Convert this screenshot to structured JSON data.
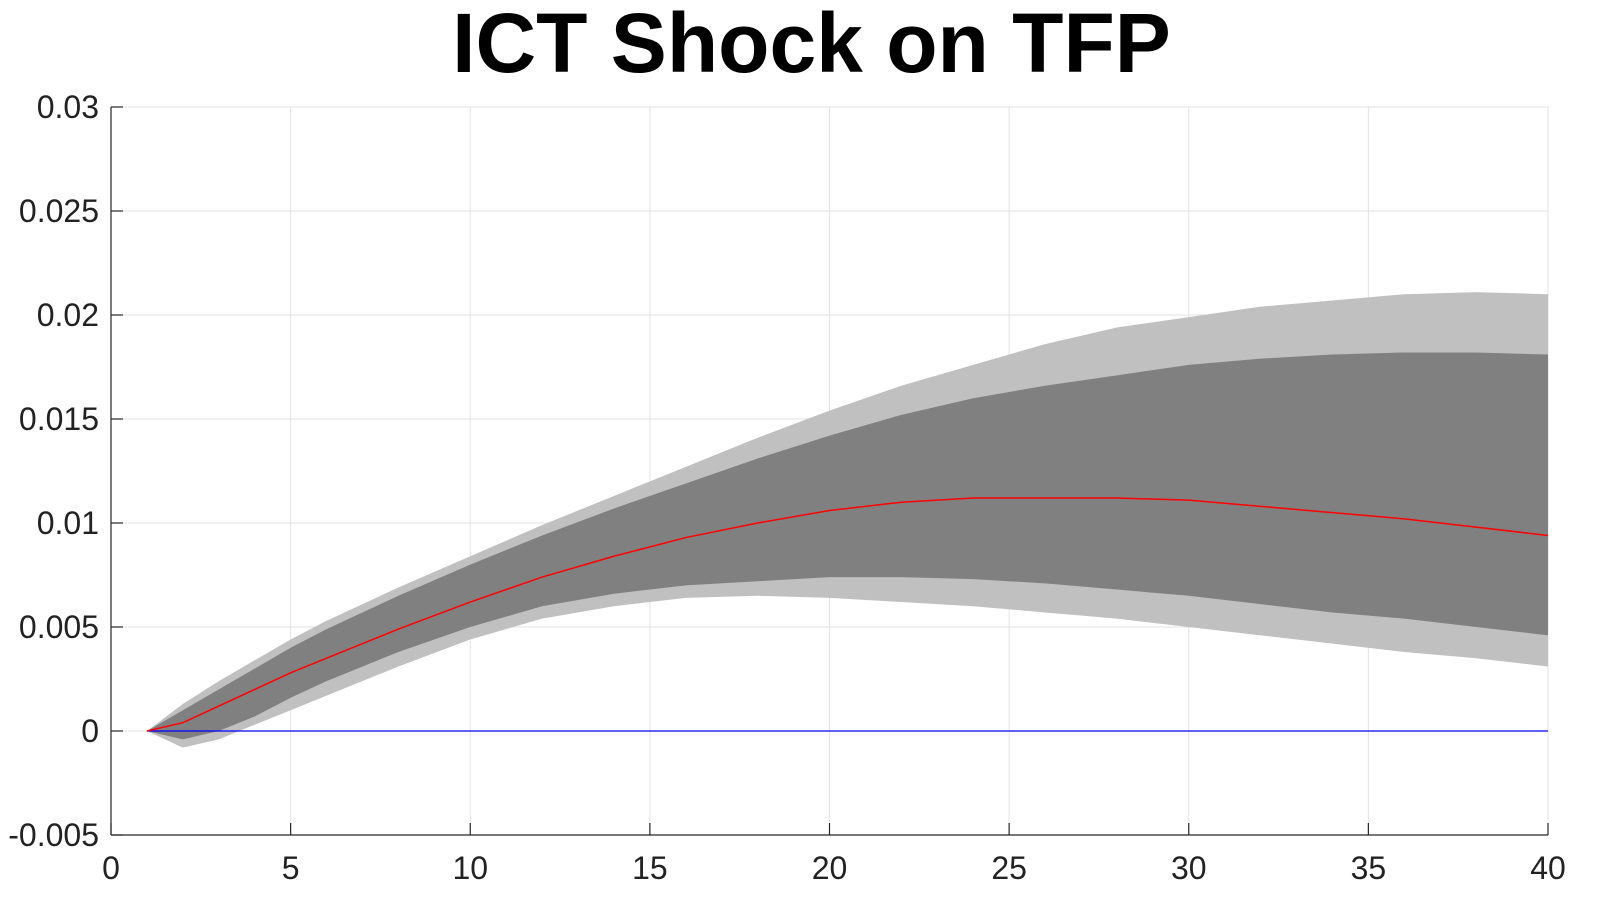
{
  "chart_data": {
    "type": "area",
    "title": "ICT Shock on TFP",
    "xlabel": "",
    "ylabel": "",
    "xlim": [
      0,
      40
    ],
    "ylim": [
      -0.005,
      0.03
    ],
    "grid": true,
    "x_ticks": [
      0,
      5,
      10,
      15,
      20,
      25,
      30,
      35,
      40
    ],
    "x_tick_labels": [
      "0",
      "5",
      "10",
      "15",
      "20",
      "25",
      "30",
      "35",
      "40"
    ],
    "y_ticks": [
      -0.005,
      0,
      0.005,
      0.01,
      0.015,
      0.02,
      0.025,
      0.03
    ],
    "y_tick_labels": [
      "-0.005",
      "0",
      "0.005",
      "0.01",
      "0.015",
      "0.02",
      "0.025",
      "0.03"
    ],
    "x": [
      1,
      2,
      3,
      4,
      5,
      6,
      8,
      10,
      12,
      14,
      16,
      18,
      20,
      22,
      24,
      26,
      28,
      30,
      32,
      34,
      36,
      38,
      40
    ],
    "series": [
      {
        "role": "outer_band_upper",
        "color": "#c0c0c0",
        "values": [
          0,
          0.0013,
          0.0024,
          0.0034,
          0.0044,
          0.0053,
          0.0069,
          0.0084,
          0.0099,
          0.0113,
          0.0127,
          0.0141,
          0.0154,
          0.0166,
          0.0176,
          0.0186,
          0.0194,
          0.0199,
          0.0204,
          0.0207,
          0.021,
          0.0211,
          0.021
        ]
      },
      {
        "role": "inner_band_upper",
        "color": "#808080",
        "values": [
          0,
          0.001,
          0.002,
          0.003,
          0.004,
          0.0049,
          0.0065,
          0.008,
          0.0094,
          0.0107,
          0.0119,
          0.0131,
          0.0142,
          0.0152,
          0.016,
          0.0166,
          0.0171,
          0.0176,
          0.0179,
          0.0181,
          0.0182,
          0.0182,
          0.0181
        ]
      },
      {
        "role": "median",
        "color": "#ff0000",
        "values": [
          0,
          0.0004,
          0.0012,
          0.002,
          0.0028,
          0.0035,
          0.0049,
          0.0062,
          0.0074,
          0.0084,
          0.0093,
          0.01,
          0.0106,
          0.011,
          0.0112,
          0.0112,
          0.0112,
          0.0111,
          0.0108,
          0.0105,
          0.0102,
          0.0098,
          0.0094
        ]
      },
      {
        "role": "inner_band_lower",
        "color": "#808080",
        "values": [
          0,
          -0.0004,
          0.0,
          0.0007,
          0.0016,
          0.0024,
          0.0038,
          0.005,
          0.006,
          0.0066,
          0.007,
          0.0072,
          0.0074,
          0.0074,
          0.0073,
          0.0071,
          0.0068,
          0.0065,
          0.0061,
          0.0057,
          0.0054,
          0.005,
          0.0046
        ]
      },
      {
        "role": "outer_band_lower",
        "color": "#c0c0c0",
        "values": [
          0,
          -0.0008,
          -0.0004,
          0.0003,
          0.001,
          0.0017,
          0.0031,
          0.0044,
          0.0054,
          0.006,
          0.0064,
          0.0065,
          0.0064,
          0.0062,
          0.006,
          0.0057,
          0.0054,
          0.005,
          0.0046,
          0.0042,
          0.0038,
          0.0035,
          0.0031
        ]
      },
      {
        "role": "zero_line",
        "color": "#0000ff",
        "values": [
          0,
          0,
          0,
          0,
          0,
          0,
          0,
          0,
          0,
          0,
          0,
          0,
          0,
          0,
          0,
          0,
          0,
          0,
          0,
          0,
          0,
          0,
          0
        ]
      }
    ]
  }
}
